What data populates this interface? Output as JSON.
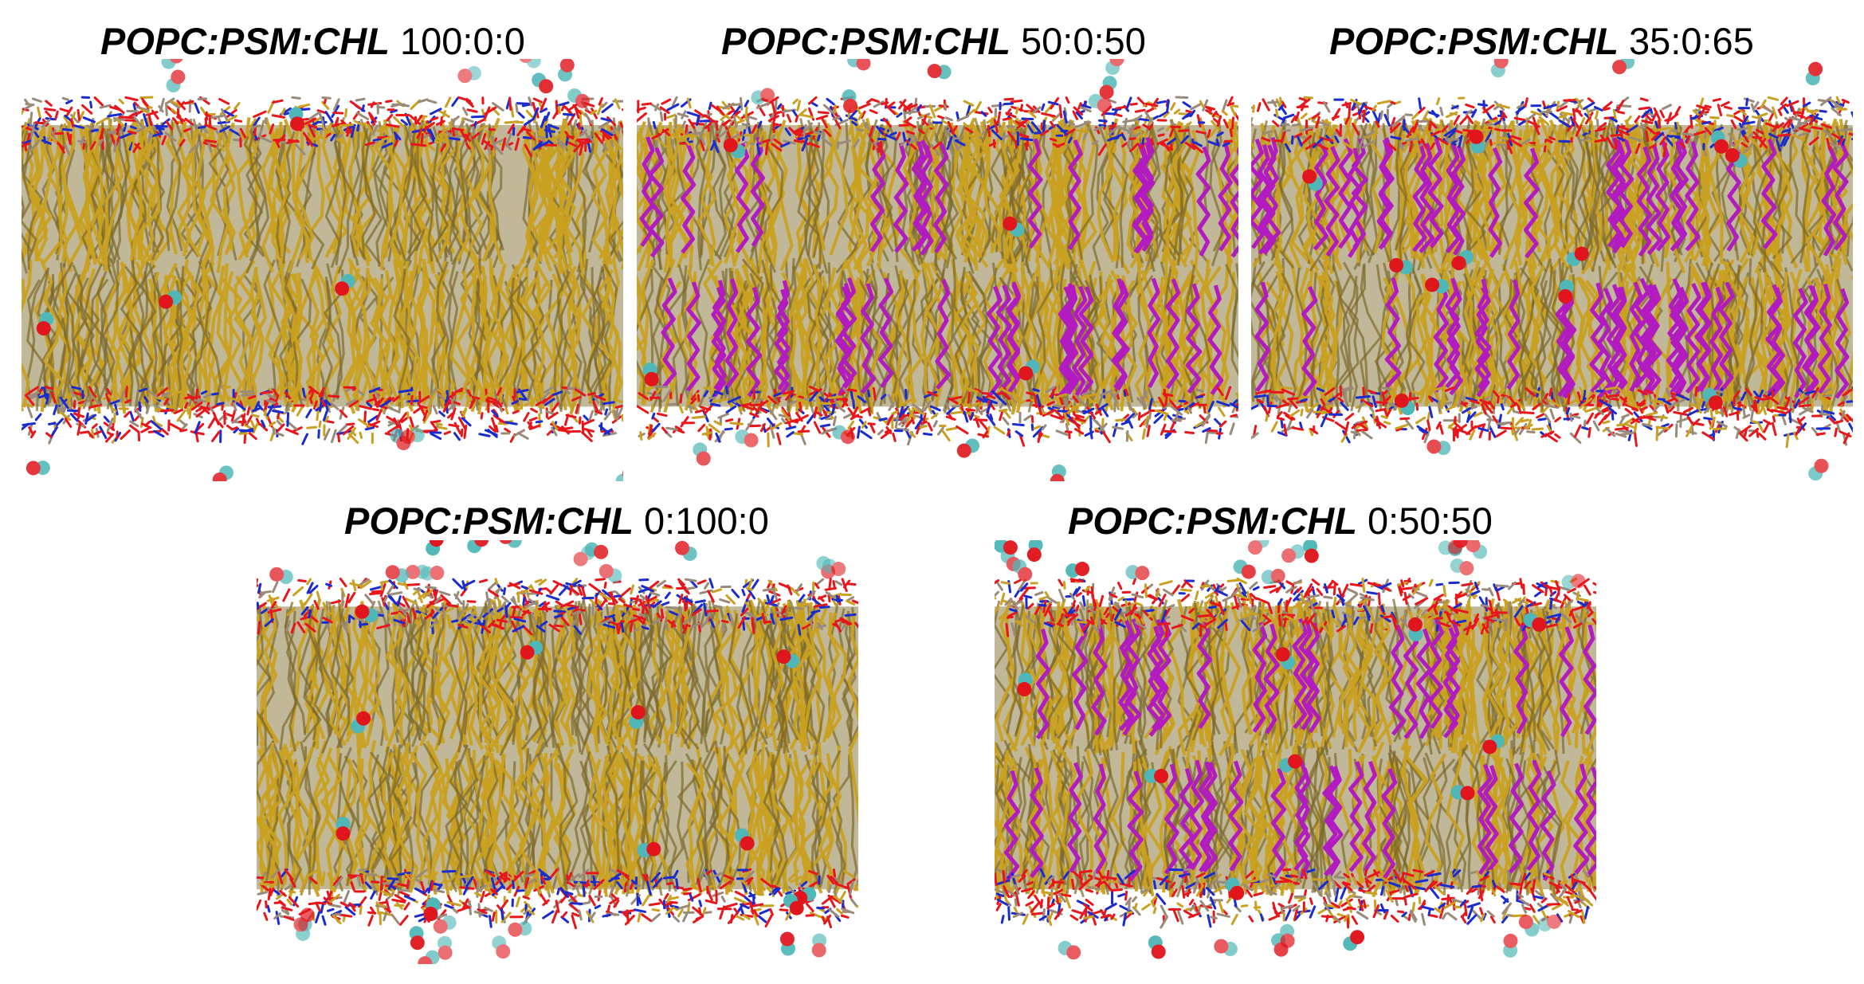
{
  "figure": {
    "panels": [
      {
        "id": "p1",
        "lipids": "POPC:PSM:CHL",
        "ratio": "100:0:0",
        "cholesterol": false,
        "water": "sparse"
      },
      {
        "id": "p2",
        "lipids": "POPC:PSM:CHL",
        "ratio": "50:0:50",
        "cholesterol": true,
        "water": "sparse"
      },
      {
        "id": "p3",
        "lipids": "POPC:PSM:CHL",
        "ratio": "35:0:65",
        "cholesterol": true,
        "water": "sparse"
      },
      {
        "id": "p4",
        "lipids": "POPC:PSM:CHL",
        "ratio": "0:100:0",
        "cholesterol": false,
        "water": "dense"
      },
      {
        "id": "p5",
        "lipids": "POPC:PSM:CHL",
        "ratio": "0:50:50",
        "cholesterol": true,
        "water": "dense"
      }
    ],
    "colors": {
      "acyl_chain": "#c9a020",
      "acyl_chain_dark": "#7d6a2a",
      "cholesterol": "#b21bc0",
      "oxygen": "#e8161b",
      "nitrogen": "#1a2bd0",
      "water_carbon": "#4fb7b7",
      "water_oxygen": "#e0161c"
    }
  }
}
